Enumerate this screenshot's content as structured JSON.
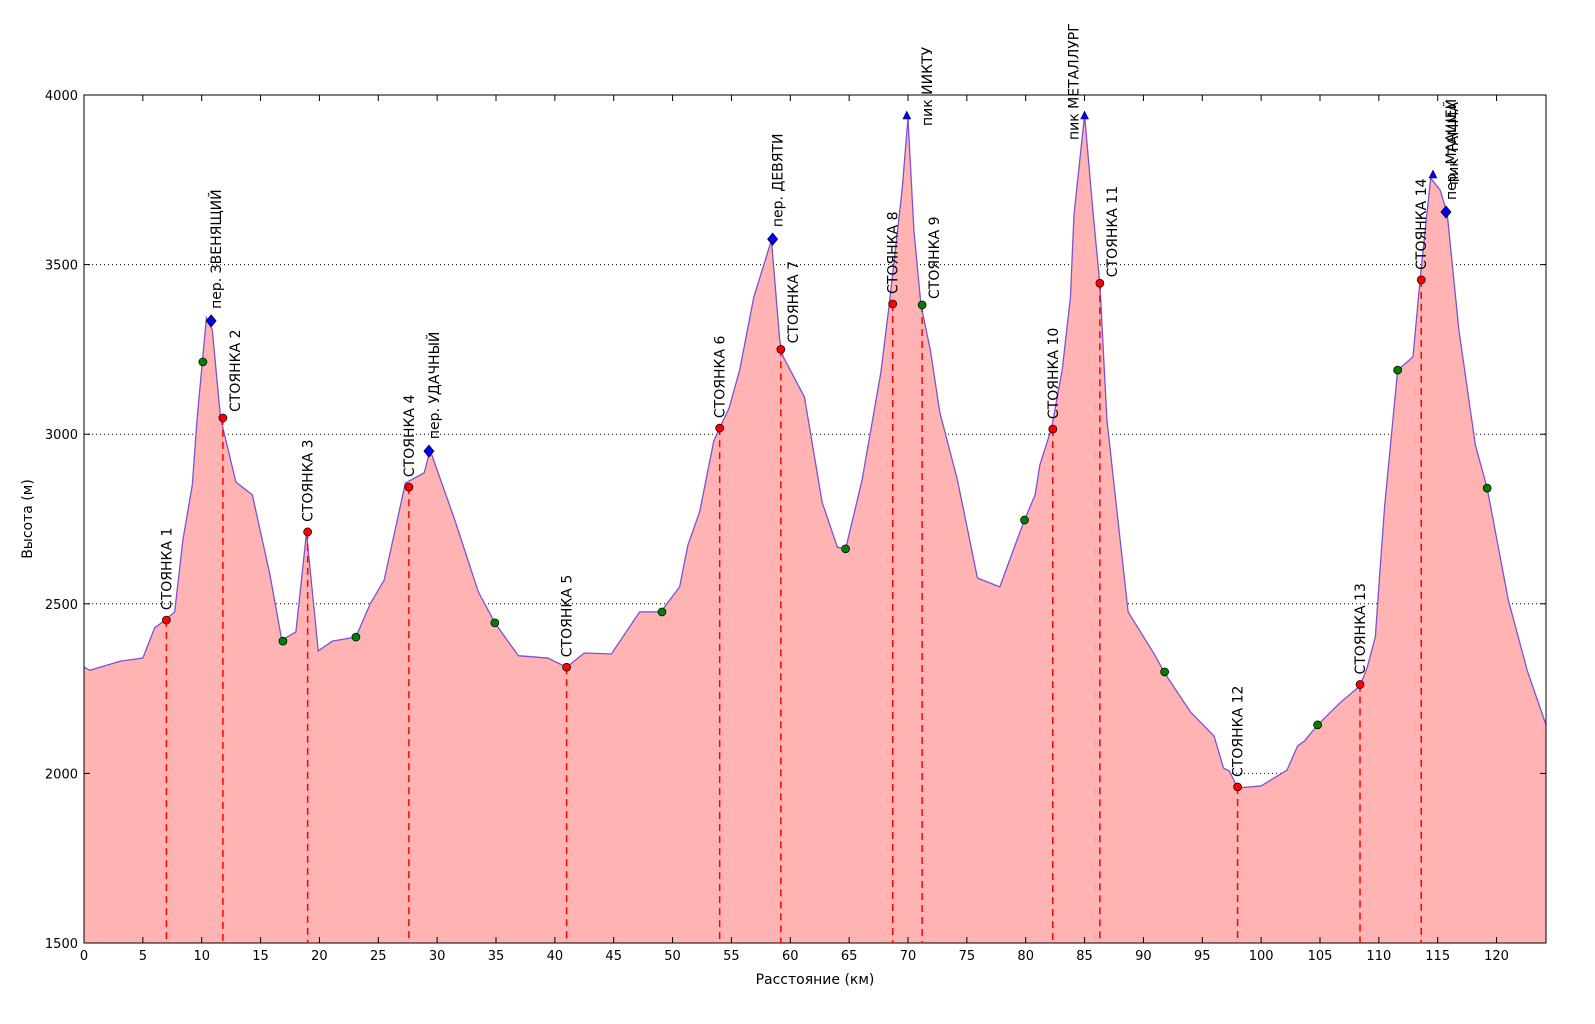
{
  "chart_data": {
    "type": "area",
    "xlabel": "Расстояние (км)",
    "ylabel": "Высота (м)",
    "xlim": [
      0,
      124.2
    ],
    "ylim": [
      1500,
      4000
    ],
    "xticks": [
      0,
      5,
      10,
      15,
      20,
      25,
      30,
      35,
      40,
      45,
      50,
      55,
      60,
      65,
      70,
      75,
      80,
      85,
      90,
      95,
      100,
      105,
      110,
      115,
      120
    ],
    "yticks": [
      1500,
      2000,
      2500,
      3000,
      3500,
      4000
    ],
    "grid": true,
    "fill_color": "#ffb3b3",
    "line_color": "#7b52d6",
    "profile": {
      "x": [
        0,
        0.5,
        3.1,
        5,
        6,
        6.9,
        7.7,
        8.4,
        9.2,
        9.6,
        10.4,
        10.9,
        11.6,
        12.9,
        14.3,
        15.8,
        16.8,
        18,
        18.9,
        19.9,
        21.1,
        23.1,
        24.3,
        25.5,
        27.3,
        28.9,
        29.4,
        31.5,
        33.5,
        34.9,
        36.9,
        39.4,
        41,
        42.5,
        44.8,
        47.2,
        49,
        50.6,
        51.3,
        52.3,
        53.5,
        54,
        54.8,
        55.7,
        56.9,
        58.4,
        59.1,
        59.4,
        61.2,
        62.7,
        64,
        64.7,
        66.1,
        67.7,
        68.4,
        69.5,
        70,
        70.5,
        71.1,
        71.9,
        72.7,
        74.2,
        75.9,
        77.8,
        79.1,
        79.9,
        80.8,
        81.2,
        82.2,
        83.1,
        83.8,
        84.1,
        85,
        85.7,
        86.3,
        86.9,
        87.6,
        88.7,
        91,
        91.8,
        94,
        96,
        96.8,
        97.3,
        98,
        100,
        102.2,
        103.1,
        103.7,
        104.8,
        106.7,
        108.4,
        109,
        109.7,
        110.1,
        110.5,
        111.6,
        112.9,
        113.5,
        114.4,
        115.2,
        115.8,
        116.8,
        118.2,
        119.2,
        121,
        122.6,
        124.2
      ],
      "y": [
        2313,
        2304,
        2331,
        2340,
        2429,
        2452,
        2476,
        2688,
        2850,
        3042,
        3343,
        3307,
        3048,
        2859,
        2821,
        2585,
        2393,
        2417,
        2709,
        2361,
        2390,
        2402,
        2499,
        2570,
        2856,
        2886,
        2953,
        2747,
        2535,
        2444,
        2347,
        2340,
        2313,
        2355,
        2352,
        2476,
        2476,
        2550,
        2673,
        2771,
        2980,
        3018,
        3077,
        3189,
        3404,
        3572,
        3278,
        3228,
        3110,
        2800,
        2667,
        2662,
        2865,
        3183,
        3381,
        3720,
        3932,
        3602,
        3381,
        3248,
        3065,
        2865,
        2576,
        2550,
        2673,
        2747,
        2821,
        2909,
        3018,
        3189,
        3404,
        3646,
        3941,
        3661,
        3443,
        3042,
        2821,
        2476,
        2347,
        2296,
        2181,
        2110,
        2016,
        2007,
        1957,
        1963,
        2010,
        2081,
        2096,
        2143,
        2208,
        2258,
        2311,
        2402,
        2600,
        2791,
        3189,
        3228,
        3454,
        3755,
        3720,
        3652,
        3307,
        2968,
        2841,
        2511,
        2304,
        2143
      ]
    },
    "camps": [
      {
        "label": "СТОЯНКА 1",
        "x": 7,
        "y": 2452,
        "color": "red"
      },
      {
        "label": "СТОЯНКА 2",
        "x": 11.8,
        "y": 3048,
        "color": "red"
      },
      {
        "label": "СТОЯНКА 3",
        "x": 19,
        "y": 2712,
        "color": "red"
      },
      {
        "label": "СТОЯНКА 4",
        "x": 27.6,
        "y": 2844,
        "color": "red"
      },
      {
        "label": "СТОЯНКА 5",
        "x": 41,
        "y": 2313,
        "color": "red"
      },
      {
        "label": "СТОЯНКА 6",
        "x": 54,
        "y": 3018,
        "color": "red"
      },
      {
        "label": "СТОЯНКА 7",
        "x": 59.2,
        "y": 3250,
        "color": "red"
      },
      {
        "label": "СТОЯНКА 8",
        "x": 68.7,
        "y": 3384,
        "color": "red"
      },
      {
        "label": "СТОЯНКА 9",
        "x": 71.2,
        "y": 3381,
        "color": "green"
      },
      {
        "label": "СТОЯНКА 10",
        "x": 82.3,
        "y": 3015,
        "color": "red"
      },
      {
        "label": "СТОЯНКА 11",
        "x": 86.3,
        "y": 3445,
        "color": "red"
      },
      {
        "label": "СТОЯНКА 12",
        "x": 98,
        "y": 1960,
        "color": "red"
      },
      {
        "label": "СТОЯНКА 13",
        "x": 108.4,
        "y": 2262,
        "color": "red"
      },
      {
        "label": "СТОЯНКА 14",
        "x": 113.6,
        "y": 3455,
        "color": "red"
      }
    ],
    "waypoints": {
      "color": "green",
      "x": [
        10.1,
        16.9,
        23.1,
        34.9,
        49.1,
        64.7,
        79.9,
        91.8,
        104.8,
        111.6,
        119.2
      ],
      "y": [
        3213,
        2390,
        2402,
        2444,
        2476,
        2662,
        2747,
        2299,
        2143,
        3189,
        2841
      ]
    },
    "passes": {
      "color": "blue",
      "marker": "diamond",
      "items": [
        {
          "label": "пер. ЗВЕНЯЩИЙ",
          "x": 10.8,
          "y": 3334
        },
        {
          "label": "пер. УДАЧНЫЙ",
          "x": 29.3,
          "y": 2950
        },
        {
          "label": "пер. ДЕВЯТИ",
          "x": 58.5,
          "y": 3575
        },
        {
          "label": "пер. МААШЕЙ",
          "x": 115.7,
          "y": 3655
        }
      ]
    },
    "peaks": {
      "color": "blue",
      "marker": "triangle",
      "items": [
        {
          "label": "пик ИИКТУ",
          "x": 69.9,
          "y": 3938
        },
        {
          "label": "пик МЕТАЛЛУРГ",
          "x": 85,
          "y": 3938
        },
        {
          "label": "пик ТАММА",
          "x": 114.6,
          "y": 3764
        }
      ]
    }
  }
}
